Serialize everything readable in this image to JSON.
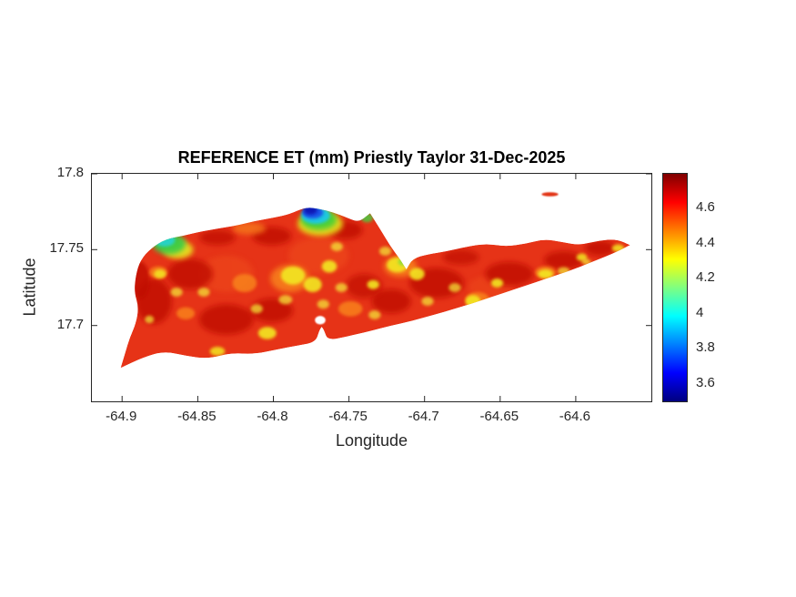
{
  "figure": {
    "background": "#ffffff",
    "axis_color": "#262626",
    "title_color": "#000000"
  },
  "chart_data": {
    "type": "heatmap",
    "title": "REFERENCE ET (mm) Priestly Taylor 31-Dec-2025",
    "xlabel": "Longitude",
    "ylabel": "Latitude",
    "xlim": [
      -64.92,
      -64.55
    ],
    "ylim": [
      17.65,
      17.8
    ],
    "x_ticks": [
      -64.9,
      -64.85,
      -64.8,
      -64.75,
      -64.7,
      -64.65,
      -64.6
    ],
    "y_ticks": [
      17.7,
      17.75,
      17.8
    ],
    "grid": false,
    "legend": false,
    "colorbar": {
      "position": "right",
      "ticks": [
        3.6,
        3.8,
        4,
        4.2,
        4.4,
        4.6
      ],
      "range": [
        3.5,
        4.8
      ],
      "colormap": "jet",
      "gradient_top_to_bottom": [
        {
          "offset": 0,
          "color": "#800000"
        },
        {
          "offset": 12.5,
          "color": "#ff0000"
        },
        {
          "offset": 37.5,
          "color": "#ffff00"
        },
        {
          "offset": 62.5,
          "color": "#00ffff"
        },
        {
          "offset": 87.5,
          "color": "#0000ff"
        },
        {
          "offset": 100,
          "color": "#000080"
        }
      ]
    },
    "description": "Priestly-Taylor reference evapotranspiration (mm) raster over St. Croix, USVI. Island is mostly 4.4-4.7 mm (red/dark red) with scattered yellow-orange pockets near 4.2 mm, a cyan-green coastal patch (~4.0) in the northwest, and a deep-blue low (~3.5-3.8) on the north-central coast.",
    "notable_features": [
      {
        "feature": "dominant island value",
        "approx_value_mm": 4.55
      },
      {
        "feature": "north-central coastal low (dark blue)",
        "lon": -64.776,
        "lat": 17.776,
        "approx_value_mm": 3.6
      },
      {
        "feature": "northwest coastal low (cyan-green)",
        "lon": -64.871,
        "lat": 17.756,
        "approx_value_mm": 4.0
      },
      {
        "feature": "Buck Island sliver (red)",
        "lon": -64.617,
        "lat": 17.787,
        "approx_value_mm": 4.6
      }
    ],
    "base_color": "#e63317",
    "island_outline": [
      [
        -64.901,
        17.672
      ],
      [
        -64.901,
        17.672
      ],
      [
        -64.886,
        17.679
      ],
      [
        -64.872,
        17.683
      ],
      [
        -64.858,
        17.68
      ],
      [
        -64.843,
        17.678
      ],
      [
        -64.828,
        17.682
      ],
      [
        -64.813,
        17.681
      ],
      [
        -64.798,
        17.684
      ],
      [
        -64.783,
        17.687
      ],
      [
        -64.772,
        17.689
      ],
      [
        -64.7695,
        17.697
      ],
      [
        -64.768,
        17.699
      ],
      [
        -64.768,
        17.699
      ],
      [
        -64.7665,
        17.697
      ],
      [
        -64.764,
        17.69
      ],
      [
        -64.75,
        17.693
      ],
      [
        -64.737,
        17.696
      ],
      [
        -64.722,
        17.7
      ],
      [
        -64.708,
        17.703
      ],
      [
        -64.694,
        17.707
      ],
      [
        -64.68,
        17.711
      ],
      [
        -64.664,
        17.716
      ],
      [
        -64.649,
        17.721
      ],
      [
        -64.634,
        17.726
      ],
      [
        -64.619,
        17.731
      ],
      [
        -64.604,
        17.736
      ],
      [
        -64.589,
        17.742
      ],
      [
        -64.574,
        17.748
      ],
      [
        -64.564,
        17.753
      ],
      [
        -64.564,
        17.753
      ],
      [
        -64.573,
        17.757
      ],
      [
        -64.585,
        17.756
      ],
      [
        -64.597,
        17.753
      ],
      [
        -64.609,
        17.755
      ],
      [
        -64.621,
        17.757
      ],
      [
        -64.633,
        17.754
      ],
      [
        -64.646,
        17.752
      ],
      [
        -64.659,
        17.754
      ],
      [
        -64.672,
        17.752
      ],
      [
        -64.685,
        17.749
      ],
      [
        -64.698,
        17.747
      ],
      [
        -64.708,
        17.744
      ],
      [
        -64.712,
        17.737
      ],
      [
        -64.712,
        17.737
      ],
      [
        -64.7165,
        17.744
      ],
      [
        -64.723,
        17.753
      ],
      [
        -64.729,
        17.763
      ],
      [
        -64.736,
        17.774
      ],
      [
        -64.736,
        17.774
      ],
      [
        -64.7435,
        17.768
      ],
      [
        -64.751,
        17.771
      ],
      [
        -64.76,
        17.7745
      ],
      [
        -64.77,
        17.777
      ],
      [
        -64.779,
        17.778
      ],
      [
        -64.789,
        17.7735
      ],
      [
        -64.8,
        17.771
      ],
      [
        -64.812,
        17.769
      ],
      [
        -64.824,
        17.766
      ],
      [
        -64.836,
        17.764
      ],
      [
        -64.848,
        17.762
      ],
      [
        -64.86,
        17.759
      ],
      [
        -64.871,
        17.757
      ],
      [
        -64.881,
        17.751
      ],
      [
        -64.888,
        17.743
      ],
      [
        -64.891,
        17.733
      ],
      [
        -64.892,
        17.722
      ],
      [
        -64.889,
        17.712
      ],
      [
        -64.891,
        17.701
      ],
      [
        -64.895,
        17.692
      ],
      [
        -64.898,
        17.682
      ]
    ],
    "blobs": [
      {
        "lon": -64.77,
        "lat": 17.746,
        "rx": 0.02,
        "ry": 0.012,
        "color": "#f0501c",
        "opacity": 0.5
      },
      {
        "lon": -64.831,
        "lat": 17.734,
        "rx": 0.018,
        "ry": 0.012,
        "color": "#f0501c",
        "opacity": 0.5
      },
      {
        "lon": -64.656,
        "lat": 17.725,
        "rx": 0.015,
        "ry": 0.008,
        "color": "#f0501c",
        "opacity": 0.45
      },
      {
        "lon": -64.879,
        "lat": 17.716,
        "rx": 0.012,
        "ry": 0.015,
        "color": "#c00d00",
        "opacity": 0.8
      },
      {
        "lon": -64.855,
        "lat": 17.734,
        "rx": 0.015,
        "ry": 0.01,
        "color": "#c00d00",
        "opacity": 0.8
      },
      {
        "lon": -64.831,
        "lat": 17.704,
        "rx": 0.018,
        "ry": 0.01,
        "color": "#c00d00",
        "opacity": 0.8
      },
      {
        "lon": -64.801,
        "lat": 17.71,
        "rx": 0.014,
        "ry": 0.008,
        "color": "#c00d00",
        "opacity": 0.8
      },
      {
        "lon": -64.692,
        "lat": 17.728,
        "rx": 0.018,
        "ry": 0.01,
        "color": "#c00d00",
        "opacity": 0.8
      },
      {
        "lon": -64.644,
        "lat": 17.734,
        "rx": 0.016,
        "ry": 0.008,
        "color": "#c00d00",
        "opacity": 0.8
      },
      {
        "lon": -64.608,
        "lat": 17.743,
        "rx": 0.013,
        "ry": 0.006,
        "color": "#c00d00",
        "opacity": 0.8
      },
      {
        "lon": -64.584,
        "lat": 17.751,
        "rx": 0.01,
        "ry": 0.005,
        "color": "#c00d00",
        "opacity": 0.8
      },
      {
        "lon": -64.722,
        "lat": 17.716,
        "rx": 0.013,
        "ry": 0.008,
        "color": "#c00d00",
        "opacity": 0.8
      },
      {
        "lon": -64.752,
        "lat": 17.763,
        "rx": 0.011,
        "ry": 0.006,
        "color": "#c00d00",
        "opacity": 0.8
      },
      {
        "lon": -64.801,
        "lat": 17.759,
        "rx": 0.013,
        "ry": 0.006,
        "color": "#c00d00",
        "opacity": 0.8
      },
      {
        "lon": -64.888,
        "lat": 17.73,
        "rx": 0.006,
        "ry": 0.012,
        "color": "#c00d00",
        "opacity": 0.8
      },
      {
        "lon": -64.837,
        "lat": 17.758,
        "rx": 0.012,
        "ry": 0.005,
        "color": "#c00d00",
        "opacity": 0.75
      },
      {
        "lon": -64.74,
        "lat": 17.726,
        "rx": 0.012,
        "ry": 0.008,
        "color": "#c00d00",
        "opacity": 0.7
      },
      {
        "lon": -64.676,
        "lat": 17.745,
        "rx": 0.012,
        "ry": 0.005,
        "color": "#c00d00",
        "opacity": 0.7
      },
      {
        "lon": -64.789,
        "lat": 17.731,
        "rx": 0.013,
        "ry": 0.009,
        "color": "#f8821c",
        "opacity": 0.85
      },
      {
        "lon": -64.819,
        "lat": 17.728,
        "rx": 0.008,
        "ry": 0.006,
        "color": "#f8821c",
        "opacity": 0.85
      },
      {
        "lon": -64.716,
        "lat": 17.739,
        "rx": 0.011,
        "ry": 0.007,
        "color": "#f8821c",
        "opacity": 0.85
      },
      {
        "lon": -64.749,
        "lat": 17.711,
        "rx": 0.008,
        "ry": 0.005,
        "color": "#f8821c",
        "opacity": 0.85
      },
      {
        "lon": -64.665,
        "lat": 17.717,
        "rx": 0.008,
        "ry": 0.005,
        "color": "#f8821c",
        "opacity": 0.85
      },
      {
        "lon": -64.62,
        "lat": 17.735,
        "rx": 0.007,
        "ry": 0.004,
        "color": "#f8821c",
        "opacity": 0.85
      },
      {
        "lon": -64.858,
        "lat": 17.708,
        "rx": 0.006,
        "ry": 0.004,
        "color": "#f8821c",
        "opacity": 0.85
      },
      {
        "lon": -64.876,
        "lat": 17.735,
        "rx": 0.006,
        "ry": 0.004,
        "color": "#f8821c",
        "opacity": 0.85
      },
      {
        "lon": -64.816,
        "lat": 17.764,
        "rx": 0.011,
        "ry": 0.004,
        "color": "#f8821c",
        "opacity": 0.7
      },
      {
        "lon": -64.787,
        "lat": 17.733,
        "rx": 0.008,
        "ry": 0.006,
        "color": "#f2e820",
        "opacity": 0.9
      },
      {
        "lon": -64.774,
        "lat": 17.727,
        "rx": 0.006,
        "ry": 0.005,
        "color": "#f2e820",
        "opacity": 0.9
      },
      {
        "lon": -64.763,
        "lat": 17.739,
        "rx": 0.005,
        "ry": 0.004,
        "color": "#f2e820",
        "opacity": 0.9
      },
      {
        "lon": -64.804,
        "lat": 17.695,
        "rx": 0.006,
        "ry": 0.004,
        "color": "#f2e820",
        "opacity": 0.9
      },
      {
        "lon": -64.837,
        "lat": 17.683,
        "rx": 0.005,
        "ry": 0.003,
        "color": "#f2e820",
        "opacity": 0.85
      },
      {
        "lon": -64.718,
        "lat": 17.74,
        "rx": 0.007,
        "ry": 0.005,
        "color": "#f2e820",
        "opacity": 0.9
      },
      {
        "lon": -64.705,
        "lat": 17.734,
        "rx": 0.005,
        "ry": 0.004,
        "color": "#f2e820",
        "opacity": 0.9
      },
      {
        "lon": -64.668,
        "lat": 17.716,
        "rx": 0.005,
        "ry": 0.004,
        "color": "#f2e820",
        "opacity": 0.9
      },
      {
        "lon": -64.652,
        "lat": 17.728,
        "rx": 0.004,
        "ry": 0.003,
        "color": "#f2e820",
        "opacity": 0.9
      },
      {
        "lon": -64.62,
        "lat": 17.734,
        "rx": 0.005,
        "ry": 0.003,
        "color": "#f2e820",
        "opacity": 0.9
      },
      {
        "lon": -64.734,
        "lat": 17.727,
        "rx": 0.004,
        "ry": 0.003,
        "color": "#f2e820",
        "opacity": 0.9
      },
      {
        "lon": -64.572,
        "lat": 17.751,
        "rx": 0.004,
        "ry": 0.0025,
        "color": "#f2e820",
        "opacity": 0.85
      },
      {
        "lon": -64.596,
        "lat": 17.745,
        "rx": 0.0035,
        "ry": 0.0025,
        "color": "#f2e820",
        "opacity": 0.85
      },
      {
        "lon": -64.875,
        "lat": 17.734,
        "rx": 0.004,
        "ry": 0.003,
        "color": "#f2e820",
        "opacity": 0.85
      },
      {
        "lon": -64.755,
        "lat": 17.725,
        "rx": 0.004,
        "ry": 0.003,
        "color": "#f4ef3a",
        "opacity": 0.7
      },
      {
        "lon": -64.767,
        "lat": 17.714,
        "rx": 0.004,
        "ry": 0.003,
        "color": "#f4ef3a",
        "opacity": 0.7
      },
      {
        "lon": -64.792,
        "lat": 17.717,
        "rx": 0.0045,
        "ry": 0.003,
        "color": "#f4ef3a",
        "opacity": 0.7
      },
      {
        "lon": -64.811,
        "lat": 17.711,
        "rx": 0.004,
        "ry": 0.003,
        "color": "#f4ef3a",
        "opacity": 0.7
      },
      {
        "lon": -64.733,
        "lat": 17.707,
        "rx": 0.004,
        "ry": 0.003,
        "color": "#f4ef3a",
        "opacity": 0.7
      },
      {
        "lon": -64.698,
        "lat": 17.716,
        "rx": 0.004,
        "ry": 0.003,
        "color": "#f4ef3a",
        "opacity": 0.7
      },
      {
        "lon": -64.68,
        "lat": 17.725,
        "rx": 0.004,
        "ry": 0.003,
        "color": "#f4ef3a",
        "opacity": 0.7
      },
      {
        "lon": -64.608,
        "lat": 17.736,
        "rx": 0.004,
        "ry": 0.0025,
        "color": "#f4ef3a",
        "opacity": 0.7
      },
      {
        "lon": -64.593,
        "lat": 17.742,
        "rx": 0.003,
        "ry": 0.002,
        "color": "#f4ef3a",
        "opacity": 0.7
      },
      {
        "lon": -64.846,
        "lat": 17.722,
        "rx": 0.004,
        "ry": 0.003,
        "color": "#f4ef3a",
        "opacity": 0.7
      },
      {
        "lon": -64.864,
        "lat": 17.722,
        "rx": 0.004,
        "ry": 0.003,
        "color": "#f4ef3a",
        "opacity": 0.7
      },
      {
        "lon": -64.882,
        "lat": 17.704,
        "rx": 0.003,
        "ry": 0.0025,
        "color": "#f4ef3a",
        "opacity": 0.7
      },
      {
        "lon": -64.758,
        "lat": 17.752,
        "rx": 0.004,
        "ry": 0.003,
        "color": "#f4ef3a",
        "opacity": 0.7
      },
      {
        "lon": -64.726,
        "lat": 17.749,
        "rx": 0.004,
        "ry": 0.003,
        "color": "#f4ef3a",
        "opacity": 0.7
      },
      {
        "lon": -64.863,
        "lat": 17.75,
        "rx": 0.01,
        "ry": 0.006,
        "color": "#e8ea20",
        "opacity": 0.9
      },
      {
        "lon": -64.869,
        "lat": 17.754,
        "rx": 0.011,
        "ry": 0.007,
        "color": "#3ecc44",
        "opacity": 0.95
      },
      {
        "lon": -64.872,
        "lat": 17.7565,
        "rx": 0.007,
        "ry": 0.0045,
        "color": "#25d3cc",
        "opacity": 0.95
      },
      {
        "lon": -64.769,
        "lat": 17.767,
        "rx": 0.015,
        "ry": 0.008,
        "color": "#e8e41e",
        "opacity": 0.9
      },
      {
        "lon": -64.77,
        "lat": 17.77,
        "rx": 0.012,
        "ry": 0.007,
        "color": "#46d038",
        "opacity": 0.95
      },
      {
        "lon": -64.772,
        "lat": 17.7725,
        "rx": 0.0095,
        "ry": 0.0055,
        "color": "#1ec8e8",
        "opacity": 0.95
      },
      {
        "lon": -64.774,
        "lat": 17.7745,
        "rx": 0.007,
        "ry": 0.004,
        "color": "#1b50e8",
        "opacity": 0.95
      },
      {
        "lon": -64.7755,
        "lat": 17.776,
        "rx": 0.0045,
        "ry": 0.0028,
        "color": "#0a18b4",
        "opacity": 0.95
      },
      {
        "lon": -64.744,
        "lat": 17.7735,
        "rx": 0.005,
        "ry": 0.003,
        "color": "#25c8d8",
        "opacity": 0.9
      },
      {
        "lon": -64.738,
        "lat": 17.771,
        "rx": 0.004,
        "ry": 0.003,
        "color": "#48cc40",
        "opacity": 0.85
      },
      {
        "lon": -64.714,
        "lat": 17.742,
        "rx": 0.0035,
        "ry": 0.0025,
        "color": "#7bdc3a",
        "opacity": 0.8
      }
    ],
    "pond": {
      "lon": -64.769,
      "lat": 17.7035,
      "rx": 0.0035,
      "ry": 0.0028,
      "color": "#ffffff"
    },
    "buck_island": {
      "lon": -64.617,
      "lat": 17.7865,
      "rx": 0.0055,
      "ry": 0.0014,
      "color": "#e23414"
    }
  }
}
